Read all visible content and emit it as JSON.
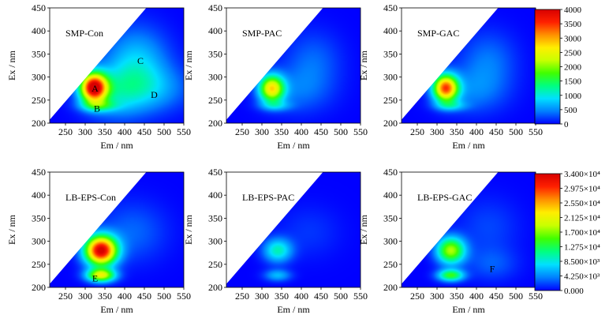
{
  "chart_data": [
    {
      "type": "heatmap",
      "title": "SMP-Con",
      "xlabel": "Em / nm",
      "ylabel": "Ex / nm",
      "xlim": [
        210,
        550
      ],
      "ylim": [
        200,
        450
      ],
      "xticks": [
        "250",
        "300",
        "350",
        "400",
        "450",
        "500",
        "550"
      ],
      "yticks": [
        "200",
        "250",
        "300",
        "350",
        "400",
        "450"
      ],
      "peaks": [
        {
          "label": "A",
          "em": 325,
          "ex": 275
        },
        {
          "label": "B",
          "em": 330,
          "ex": 232
        },
        {
          "label": "C",
          "em": 440,
          "ex": 335
        },
        {
          "label": "D",
          "em": 475,
          "ex": 262
        }
      ],
      "blobs": [
        {
          "em": 322,
          "ex": 277,
          "sem": 24,
          "sex": 22,
          "v": 3900
        },
        {
          "em": 335,
          "ex": 238,
          "sem": 32,
          "sex": 9,
          "v": 900
        },
        {
          "em": 430,
          "ex": 335,
          "sem": 55,
          "sex": 50,
          "v": 750
        },
        {
          "em": 460,
          "ex": 275,
          "sem": 70,
          "sex": 35,
          "v": 600
        },
        {
          "em": 375,
          "ex": 265,
          "sem": 55,
          "sex": 40,
          "v": 600
        }
      ],
      "vmax": 4000
    },
    {
      "type": "heatmap",
      "title": "SMP-PAC",
      "xlabel": "Em / nm",
      "ylabel": "Ex / nm",
      "xlim": [
        210,
        550
      ],
      "ylim": [
        200,
        450
      ],
      "xticks": [
        "250",
        "300",
        "350",
        "400",
        "450",
        "500",
        "550"
      ],
      "yticks": [
        "200",
        "250",
        "300",
        "350",
        "400",
        "450"
      ],
      "peaks": [],
      "blobs": [
        {
          "em": 325,
          "ex": 275,
          "sem": 22,
          "sex": 20,
          "v": 2600
        },
        {
          "em": 335,
          "ex": 238,
          "sem": 28,
          "sex": 8,
          "v": 550
        },
        {
          "em": 430,
          "ex": 335,
          "sem": 50,
          "sex": 45,
          "v": 350
        },
        {
          "em": 390,
          "ex": 270,
          "sem": 60,
          "sex": 35,
          "v": 350
        }
      ],
      "vmax": 4000
    },
    {
      "type": "heatmap",
      "title": "SMP-GAC",
      "xlabel": "Em / nm",
      "ylabel": "Ex / nm",
      "xlim": [
        210,
        550
      ],
      "ylim": [
        200,
        450
      ],
      "xticks": [
        "250",
        "300",
        "350",
        "400",
        "450",
        "500",
        "550"
      ],
      "yticks": [
        "200",
        "250",
        "300",
        "350",
        "400",
        "450"
      ],
      "peaks": [],
      "blobs": [
        {
          "em": 322,
          "ex": 276,
          "sem": 22,
          "sex": 20,
          "v": 3300
        },
        {
          "em": 335,
          "ex": 238,
          "sem": 28,
          "sex": 8,
          "v": 650
        },
        {
          "em": 430,
          "ex": 335,
          "sem": 50,
          "sex": 45,
          "v": 400
        },
        {
          "em": 390,
          "ex": 270,
          "sem": 60,
          "sex": 35,
          "v": 400
        }
      ],
      "vmax": 4000
    },
    {
      "type": "heatmap",
      "title": "LB-EPS-Con",
      "xlabel": "Em / nm",
      "ylabel": "Ex / nm",
      "xlim": [
        210,
        550
      ],
      "ylim": [
        200,
        450
      ],
      "xticks": [
        "250",
        "300",
        "350",
        "400",
        "450",
        "500",
        "550"
      ],
      "yticks": [
        "200",
        "250",
        "300",
        "350",
        "400",
        "450"
      ],
      "peaks": [
        {
          "label": "E",
          "em": 325,
          "ex": 220
        }
      ],
      "blobs": [
        {
          "em": 340,
          "ex": 280,
          "sem": 28,
          "sex": 22,
          "v": 34000
        },
        {
          "em": 340,
          "ex": 226,
          "sem": 25,
          "sex": 10,
          "v": 20000
        },
        {
          "em": 420,
          "ex": 320,
          "sem": 60,
          "sex": 45,
          "v": 3000
        }
      ],
      "vmax": 34000
    },
    {
      "type": "heatmap",
      "title": "LB-EPS-PAC",
      "xlabel": "Em / nm",
      "ylabel": "Ex / nm",
      "xlim": [
        210,
        550
      ],
      "ylim": [
        200,
        450
      ],
      "xticks": [
        "250",
        "300",
        "350",
        "400",
        "450",
        "500",
        "550"
      ],
      "yticks": [
        "200",
        "250",
        "300",
        "350",
        "400",
        "450"
      ],
      "peaks": [],
      "blobs": [
        {
          "em": 340,
          "ex": 280,
          "sem": 25,
          "sex": 18,
          "v": 9500
        },
        {
          "em": 340,
          "ex": 226,
          "sem": 23,
          "sex": 9,
          "v": 6000
        },
        {
          "em": 420,
          "ex": 320,
          "sem": 55,
          "sex": 40,
          "v": 1500
        }
      ],
      "vmax": 34000
    },
    {
      "type": "heatmap",
      "title": "LB-EPS-GAC",
      "xlabel": "Em / nm",
      "ylabel": "Ex / nm",
      "xlim": [
        210,
        550
      ],
      "ylim": [
        200,
        450
      ],
      "xticks": [
        "250",
        "300",
        "350",
        "400",
        "450",
        "500",
        "550"
      ],
      "yticks": [
        "200",
        "250",
        "300",
        "350",
        "400",
        "450"
      ],
      "peaks": [
        {
          "label": "F",
          "em": 440,
          "ex": 240
        }
      ],
      "blobs": [
        {
          "em": 335,
          "ex": 280,
          "sem": 25,
          "sex": 20,
          "v": 18000
        },
        {
          "em": 335,
          "ex": 226,
          "sem": 23,
          "sex": 9,
          "v": 14000
        },
        {
          "em": 440,
          "ex": 250,
          "sem": 45,
          "sex": 25,
          "v": 2500
        },
        {
          "em": 430,
          "ex": 330,
          "sem": 55,
          "sex": 45,
          "v": 2000
        }
      ],
      "vmax": 34000
    }
  ],
  "colorbars": [
    {
      "ticks": [
        "4000",
        "3500",
        "3000",
        "2500",
        "2000",
        "1500",
        "1000",
        "500",
        "0"
      ]
    },
    {
      "ticks": [
        "3.400×10⁴",
        "2.975×10⁴",
        "2.550×10⁴",
        "2.125×10⁴",
        "1.700×10⁴",
        "1.275×10⁴",
        "8.500×10³",
        "4.250×10³",
        "0.000"
      ]
    }
  ],
  "colormap": [
    "#0000ff",
    "#0080ff",
    "#00e0ff",
    "#00ff80",
    "#40ff00",
    "#c8ff00",
    "#ffee00",
    "#ff9000",
    "#ff2000",
    "#d80000"
  ]
}
